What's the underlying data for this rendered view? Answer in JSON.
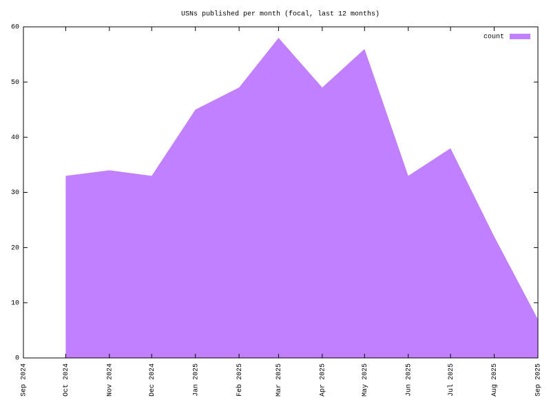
{
  "chart_data": {
    "type": "area",
    "title": "USNs published per month (focal, last 12 months)",
    "x": [
      "Oct 2024",
      "Nov 2024",
      "Dec 2024",
      "Jan 2025",
      "Feb 2025",
      "Mar 2025",
      "Apr 2025",
      "May 2025",
      "Jun 2025",
      "Jul 2025",
      "Aug 2025",
      "Sep 2025"
    ],
    "series": [
      {
        "name": "count",
        "color": "#c080ff",
        "values": [
          33,
          34,
          33,
          45,
          49,
          58,
          49,
          56,
          33,
          38,
          22,
          7
        ]
      }
    ],
    "xlim": [
      "Sep 2024",
      "Sep 2025"
    ],
    "xticks": [
      "Sep 2024",
      "Oct 2024",
      "Nov 2024",
      "Dec 2024",
      "Jan 2025",
      "Feb 2025",
      "Mar 2025",
      "Apr 2025",
      "May 2025",
      "Jun 2025",
      "Jul 2025",
      "Aug 2025",
      "Sep 2025"
    ],
    "ylim": [
      0,
      60
    ],
    "yticks": [
      0,
      10,
      20,
      30,
      40,
      50,
      60
    ],
    "legend": "top-right",
    "grid": false
  }
}
